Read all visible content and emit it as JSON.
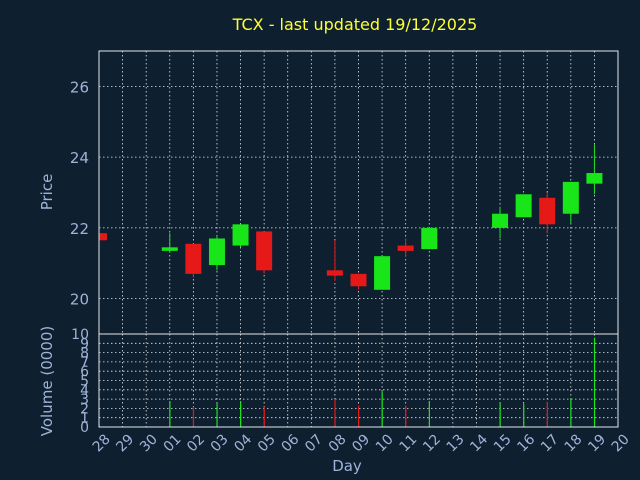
{
  "colors": {
    "background": "#0e1f30",
    "up": "#19e619",
    "down": "#e61919",
    "title": "#ffff33",
    "text": "#9fb4d6",
    "grid": "#e6e6e6"
  },
  "chart_data": [
    {
      "type": "candlestick",
      "title": "TCX - last updated 19/12/2025",
      "ylabel": "Price",
      "ylim": [
        19,
        27
      ],
      "y_ticks": [
        20,
        22,
        24,
        26
      ],
      "grid": true,
      "x_tick_labels": [
        "28",
        "29",
        "30",
        "01",
        "02",
        "03",
        "04",
        "05",
        "06",
        "07",
        "08",
        "09",
        "10",
        "11",
        "12",
        "13",
        "14",
        "15",
        "16",
        "17",
        "18",
        "19",
        "20"
      ],
      "candles": [
        {
          "x": "28",
          "open": 21.85,
          "high": 21.95,
          "low": 21.6,
          "close": 21.65
        },
        {
          "x": "01",
          "open": 21.35,
          "high": 21.85,
          "low": 21.3,
          "close": 21.45
        },
        {
          "x": "02",
          "open": 21.55,
          "high": 21.55,
          "low": 20.6,
          "close": 20.7
        },
        {
          "x": "03",
          "open": 20.95,
          "high": 21.75,
          "low": 20.8,
          "close": 21.7
        },
        {
          "x": "04",
          "open": 21.5,
          "high": 22.1,
          "low": 21.45,
          "close": 22.1
        },
        {
          "x": "05",
          "open": 21.9,
          "high": 21.9,
          "low": 20.7,
          "close": 20.8
        },
        {
          "x": "08",
          "open": 20.8,
          "high": 21.65,
          "low": 20.5,
          "close": 20.65
        },
        {
          "x": "09",
          "open": 20.7,
          "high": 20.7,
          "low": 20.25,
          "close": 20.35
        },
        {
          "x": "10",
          "open": 20.25,
          "high": 21.2,
          "low": 20.25,
          "close": 21.2
        },
        {
          "x": "11",
          "open": 21.5,
          "high": 21.7,
          "low": 21.2,
          "close": 21.35
        },
        {
          "x": "12",
          "open": 21.4,
          "high": 22.0,
          "low": 21.4,
          "close": 22.0
        },
        {
          "x": "15",
          "open": 22.0,
          "high": 22.6,
          "low": 21.7,
          "close": 22.4
        },
        {
          "x": "16",
          "open": 22.3,
          "high": 22.95,
          "low": 22.3,
          "close": 22.95
        },
        {
          "x": "17",
          "open": 22.85,
          "high": 23.0,
          "low": 21.85,
          "close": 22.1
        },
        {
          "x": "18",
          "open": 22.4,
          "high": 23.3,
          "low": 22.1,
          "close": 23.3
        },
        {
          "x": "19",
          "open": 23.25,
          "high": 24.35,
          "low": 22.95,
          "close": 23.55
        }
      ]
    },
    {
      "type": "bar",
      "ylabel": "Volume (0000)",
      "xlabel": "Day",
      "ylim": [
        0,
        10
      ],
      "y_ticks": [
        0,
        1,
        2,
        3,
        4,
        5,
        6,
        7,
        8,
        9,
        10
      ],
      "y_tick_labels": [
        "0",
        "1",
        "2",
        "3",
        "4",
        "5",
        "6",
        "7",
        "8",
        "9",
        "10"
      ],
      "grid": true,
      "categories": [
        "28",
        "01",
        "02",
        "03",
        "04",
        "05",
        "08",
        "09",
        "10",
        "11",
        "12",
        "15",
        "16",
        "17",
        "18",
        "19"
      ],
      "values": [
        0.3,
        2.8,
        2.2,
        2.6,
        2.8,
        2.2,
        3.0,
        2.3,
        3.8,
        2.3,
        2.8,
        2.6,
        2.5,
        2.7,
        3.1,
        9.6
      ],
      "directions": [
        "down",
        "up",
        "down",
        "up",
        "up",
        "down",
        "down",
        "down",
        "up",
        "down",
        "up",
        "up",
        "up",
        "down",
        "up",
        "up"
      ]
    }
  ]
}
